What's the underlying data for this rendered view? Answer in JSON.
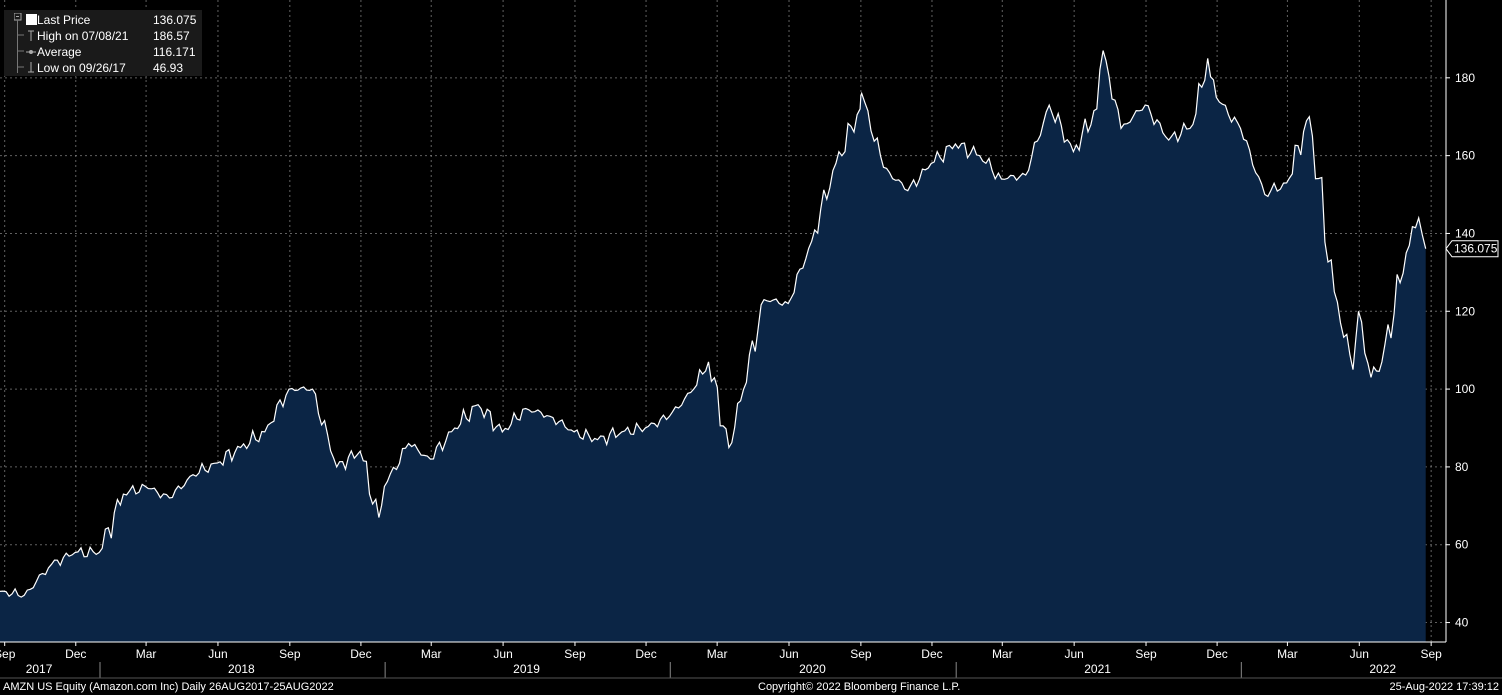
{
  "legend": {
    "rows": [
      {
        "label": "Last Price",
        "value": "136.075"
      },
      {
        "label": "High on 07/08/21",
        "value": "186.57"
      },
      {
        "label": "Average",
        "value": "116.171"
      },
      {
        "label": "Low on 09/26/17",
        "value": "46.93"
      }
    ]
  },
  "footer": {
    "left": "AMZN US Equity (Amazon.com Inc)  Daily 26AUG2017-25AUG2022",
    "center": "Copyright© 2022 Bloomberg Finance L.P.",
    "right": "25-Aug-2022 17:39:12"
  },
  "colors": {
    "background": "#000000",
    "area_fill": "#0b2545",
    "line": "#ffffff",
    "grid": "#8a8a8a",
    "axis_text": "#ffffff"
  },
  "chart_data": {
    "type": "area",
    "series": [
      {
        "name": "Last Price",
        "x": [
          "2017-08-26",
          "2017-09-26",
          "2017-10-31",
          "2017-11-30",
          "2017-12-31",
          "2018-01-31",
          "2018-02-28",
          "2018-03-31",
          "2018-04-30",
          "2018-05-31",
          "2018-06-30",
          "2018-07-31",
          "2018-08-31",
          "2018-09-30",
          "2018-10-31",
          "2018-11-30",
          "2018-12-24",
          "2018-12-31",
          "2019-01-31",
          "2019-02-28",
          "2019-03-31",
          "2019-04-30",
          "2019-05-31",
          "2019-06-30",
          "2019-07-31",
          "2019-08-31",
          "2019-09-30",
          "2019-10-31",
          "2019-11-30",
          "2019-12-31",
          "2020-01-31",
          "2020-02-19",
          "2020-03-16",
          "2020-03-31",
          "2020-04-30",
          "2020-05-31",
          "2020-06-30",
          "2020-07-31",
          "2020-08-31",
          "2020-09-02",
          "2020-09-30",
          "2020-10-31",
          "2020-11-30",
          "2020-12-31",
          "2021-01-31",
          "2021-02-28",
          "2021-03-31",
          "2021-04-30",
          "2021-05-31",
          "2021-06-30",
          "2021-07-08",
          "2021-07-31",
          "2021-08-31",
          "2021-09-30",
          "2021-10-31",
          "2021-11-19",
          "2021-11-30",
          "2021-12-31",
          "2022-01-31",
          "2022-02-28",
          "2022-03-29",
          "2022-04-30",
          "2022-05-24",
          "2022-05-31",
          "2022-06-16",
          "2022-06-30",
          "2022-07-31",
          "2022-08-16",
          "2022-08-25"
        ],
        "values": [
          48,
          47,
          55,
          58,
          58,
          73,
          75,
          72,
          78,
          81,
          85,
          89,
          100,
          100,
          80,
          84,
          67,
          75,
          86,
          82,
          90,
          96,
          89,
          95,
          93,
          89,
          87,
          89,
          90,
          93,
          100,
          107,
          85,
          97,
          123,
          122,
          138,
          158,
          172,
          176,
          157,
          151,
          158,
          163,
          160,
          154,
          155,
          173,
          161,
          172,
          187,
          167,
          173,
          164,
          168,
          185,
          175,
          167,
          150,
          153,
          170,
          125,
          105,
          120,
          103,
          107,
          135,
          144,
          136.075
        ]
      }
    ],
    "x_ticks": [
      "Sep",
      "Dec",
      "Mar",
      "Jun",
      "Sep",
      "Dec",
      "Mar",
      "Jun",
      "Sep",
      "Dec",
      "Mar",
      "Jun",
      "Sep",
      "Dec",
      "Mar",
      "Jun",
      "Sep",
      "Dec",
      "Mar",
      "Jun",
      "Sep"
    ],
    "x_ticks_dates": [
      "2017-09-01",
      "2017-12-01",
      "2018-03-01",
      "2018-06-01",
      "2018-09-01",
      "2018-12-01",
      "2019-03-01",
      "2019-06-01",
      "2019-09-01",
      "2019-12-01",
      "2020-03-01",
      "2020-06-01",
      "2020-09-01",
      "2020-12-01",
      "2021-03-01",
      "2021-06-01",
      "2021-09-01",
      "2021-12-01",
      "2022-03-01",
      "2022-06-01",
      "2022-09-01"
    ],
    "year_labels": [
      "2017",
      "2018",
      "2019",
      "2020",
      "2021",
      "2022"
    ],
    "year_label_dates": [
      "2017-10-15",
      "2018-07-01",
      "2019-07-01",
      "2020-07-01",
      "2021-07-01",
      "2022-07-01"
    ],
    "year_boundaries": [
      "2018-01-01",
      "2019-01-01",
      "2020-01-01",
      "2021-01-01",
      "2022-01-01"
    ],
    "y_ticks": [
      40,
      60,
      80,
      100,
      120,
      140,
      160,
      180
    ],
    "ylim": [
      35,
      200
    ],
    "xlim": [
      "2017-08-26",
      "2022-09-20"
    ],
    "last_value_label": "136.075",
    "grid": true,
    "legend_position": "top-left"
  }
}
